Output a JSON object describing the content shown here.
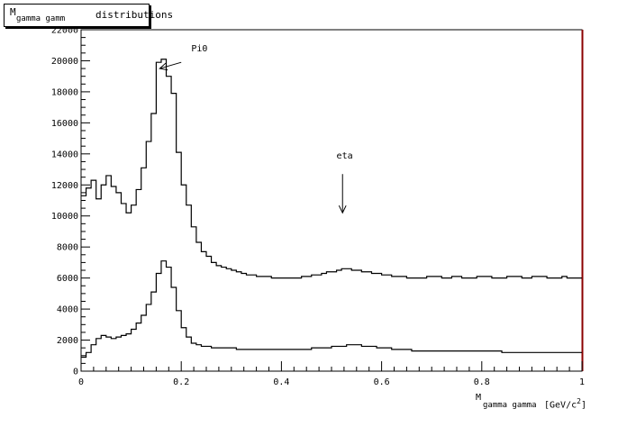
{
  "title": {
    "main": "M",
    "subscript": "gamma gamm",
    "rest": " distributions"
  },
  "chart_data": {
    "type": "histogram",
    "xlabel": {
      "main": "M",
      "subscript": "gamma gamma",
      "unit": "[GeV/c",
      "unit_sup": "2",
      "unit_close": "]"
    },
    "xlim": [
      0,
      1
    ],
    "ylim": [
      0,
      22000
    ],
    "x_ticks": [
      0,
      0.2,
      0.4,
      0.6,
      0.8,
      1
    ],
    "x_tick_labels": [
      "0",
      "0.2",
      "0.4",
      "0.6",
      "0.8",
      "1"
    ],
    "y_ticks": [
      0,
      2000,
      4000,
      6000,
      8000,
      10000,
      12000,
      14000,
      16000,
      18000,
      20000,
      22000
    ],
    "y_tick_labels": [
      "0",
      "2000",
      "4000",
      "6000",
      "8000",
      "10000",
      "12000",
      "14000",
      "16000",
      "18000",
      "20000",
      "22000"
    ],
    "bin_width": 0.01,
    "grid": false,
    "annotations": [
      {
        "text": "Pi0",
        "x": 0.22,
        "y": 20600,
        "arrow_from": [
          0.2,
          19900
        ],
        "arrow_to": [
          0.157,
          19500
        ]
      },
      {
        "text": "eta",
        "x": 0.51,
        "y": 13700,
        "arrow_from": [
          0.522,
          12700
        ],
        "arrow_to": [
          0.522,
          10200
        ]
      }
    ],
    "series": [
      {
        "values": [
          11300,
          11800,
          12300,
          11100,
          12000,
          12600,
          11900,
          11500,
          10800,
          10200,
          10700,
          11700,
          13100,
          14800,
          16600,
          19900,
          20100,
          19000,
          17900,
          14100,
          12000,
          10700,
          9300,
          8300,
          7700,
          7400,
          7000,
          6800,
          6700,
          6600,
          6500,
          6400,
          6300,
          6200,
          6200,
          6100,
          6100,
          6100,
          6000,
          6000,
          6000,
          6000,
          6000,
          6000,
          6100,
          6100,
          6200,
          6200,
          6300,
          6400,
          6400,
          6500,
          6600,
          6600,
          6500,
          6500,
          6400,
          6400,
          6300,
          6300,
          6200,
          6200,
          6100,
          6100,
          6100,
          6000,
          6000,
          6000,
          6000,
          6100,
          6100,
          6100,
          6000,
          6000,
          6100,
          6100,
          6000,
          6000,
          6000,
          6100,
          6100,
          6100,
          6000,
          6000,
          6000,
          6100,
          6100,
          6100,
          6000,
          6000,
          6100,
          6100,
          6100,
          6000,
          6000,
          6000,
          6100,
          6000,
          6000,
          6000
        ]
      },
      {
        "values": [
          900,
          1200,
          1700,
          2100,
          2300,
          2200,
          2100,
          2200,
          2300,
          2400,
          2700,
          3100,
          3600,
          4300,
          5100,
          6300,
          7100,
          6700,
          5400,
          3900,
          2800,
          2200,
          1800,
          1700,
          1600,
          1600,
          1500,
          1500,
          1500,
          1500,
          1500,
          1400,
          1400,
          1400,
          1400,
          1400,
          1400,
          1400,
          1400,
          1400,
          1400,
          1400,
          1400,
          1400,
          1400,
          1400,
          1500,
          1500,
          1500,
          1500,
          1600,
          1600,
          1600,
          1700,
          1700,
          1700,
          1600,
          1600,
          1600,
          1500,
          1500,
          1500,
          1400,
          1400,
          1400,
          1400,
          1300,
          1300,
          1300,
          1300,
          1300,
          1300,
          1300,
          1300,
          1300,
          1300,
          1300,
          1300,
          1300,
          1300,
          1300,
          1300,
          1300,
          1300,
          1200,
          1200,
          1200,
          1200,
          1200,
          1200,
          1200,
          1200,
          1200,
          1200,
          1200,
          1200,
          1200,
          1200,
          1200,
          1200
        ]
      }
    ]
  }
}
